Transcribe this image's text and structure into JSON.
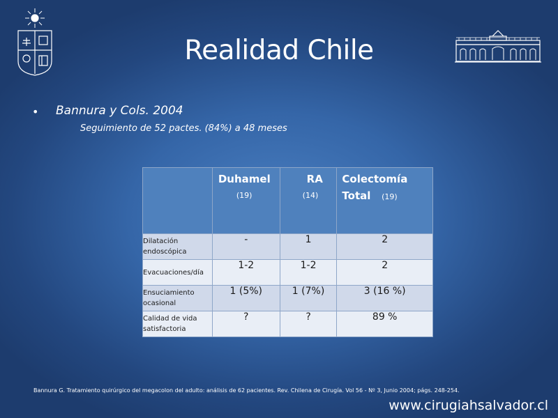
{
  "slide": {
    "title": "Realidad Chile",
    "bullet": "Bannura y Cols. 2004",
    "subbullet": "Seguimiento de 52 pactes. (84%) a 48 meses"
  },
  "table": {
    "headers": [
      {
        "main": "",
        "sub": ""
      },
      {
        "main": "Duhamel",
        "sub": "(19)"
      },
      {
        "main": "RA",
        "sub": "(14)"
      },
      {
        "main": "Colectomía",
        "main2": "Total",
        "sub": "(19)"
      }
    ],
    "rows": [
      {
        "label": "Dilatación endoscópica",
        "values": [
          "-",
          "1",
          "2"
        ]
      },
      {
        "label": "Evacuaciones/día",
        "values": [
          "1-2",
          "1-2",
          "2"
        ]
      },
      {
        "label": "Ensuciamiento ocasional",
        "values": [
          "1 (5%)",
          "1 (7%)",
          "3 (16 %)"
        ]
      },
      {
        "label": "Calidad de vida satisfactoria",
        "values": [
          "?",
          "?",
          "89 %"
        ]
      }
    ]
  },
  "footnote": "Bannura G. Tratamiento quirúrgico del megacolon del adulto: análisis de 62 pacientes. Rev. Chilena de Cirugía. Vol 56 - Nº 3, Junio 2004; págs. 248-254.",
  "website": "www.cirugiahsalvador.cl",
  "colors": {
    "table_header": "#4f81bd",
    "row_dark": "#d0d9ea",
    "row_light": "#e9eef6",
    "background": "#2f5f9e"
  }
}
